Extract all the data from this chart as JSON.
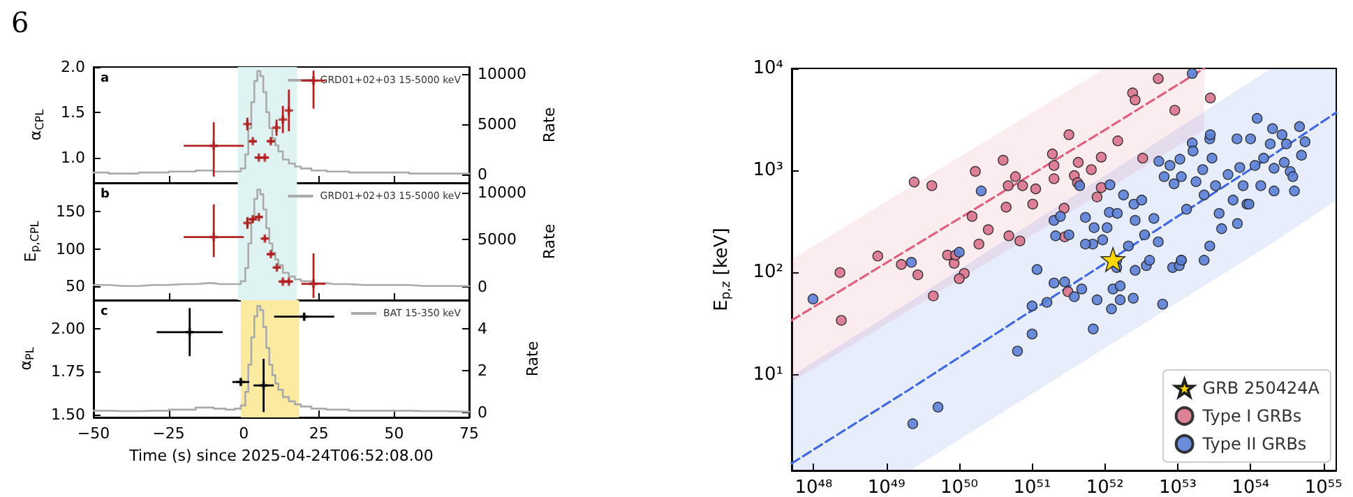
{
  "chart_data": [
    {
      "type": "other",
      "annotations": [
        "6"
      ]
    },
    {
      "type": "scatter",
      "ylabel": "α$_{CPL}$",
      "y2label": "Rate",
      "annotations": [
        "a"
      ],
      "xlim": [
        -50,
        75
      ],
      "xticks": [
        -50,
        -25,
        0,
        25,
        50,
        75
      ],
      "ylim": [
        0.72,
        2.0
      ],
      "yticks": [
        {
          "value": 1,
          "label": "1.0"
        },
        {
          "value": 1.5,
          "label": "1.5"
        },
        {
          "value": 2,
          "label": "2.0"
        }
      ],
      "y2lim": [
        -830,
        10700
      ],
      "y2ticks": [
        0,
        5000,
        10000
      ],
      "tick_labels": "y",
      "legend": "top right",
      "bands": [
        {
          "axis": "x",
          "from": -2,
          "to": 17.7,
          "color": "#dff3f3"
        }
      ],
      "series": [
        {
          "type": "step",
          "name": "GRD01+02+03 15-5000 keV",
          "color": "#aaaaaa",
          "axis": "y2",
          "x": [
            -50,
            -40,
            -30,
            -20,
            -12,
            -8,
            -4,
            -2,
            0,
            1,
            2,
            3,
            4,
            5,
            6,
            7,
            8,
            9,
            10,
            11,
            12,
            14,
            16,
            18,
            20,
            25,
            30,
            40,
            50,
            60,
            75
          ],
          "values": [
            200,
            100,
            200,
            300,
            400,
            300,
            300,
            300,
            600,
            2000,
            4600,
            7200,
            9300,
            10300,
            9800,
            8200,
            6200,
            4600,
            3600,
            2900,
            2300,
            1500,
            1100,
            800,
            600,
            400,
            300,
            200,
            200,
            100,
            100
          ]
        },
        {
          "color": "#b22222",
          "marker": "cross",
          "x": [
            -10,
            1.2,
            3,
            5,
            7,
            9,
            10.9,
            13,
            15,
            23.2
          ],
          "values": [
            1.13,
            1.37,
            1.18,
            1.0,
            1.0,
            1.18,
            1.33,
            1.42,
            1.52,
            1.85
          ],
          "errors": [
            [
              0.79,
              1.39
            ],
            0.07,
            0.02,
            0.02,
            0.02,
            0.03,
            0.09,
            0.15,
            0.23,
            [
              1.54,
              1.96
            ]
          ],
          "xerrors": [
            10,
            0.5,
            1.2,
            1.2,
            1.2,
            1.2,
            0.5,
            0.5,
            0.5,
            4
          ]
        }
      ]
    },
    {
      "type": "scatter",
      "ylabel": "E$_{p,CPL}$",
      "y2label": "Rate",
      "annotations": [
        "b"
      ],
      "xlim": [
        -50,
        75
      ],
      "xticks": [
        -50,
        -25,
        0,
        25,
        50,
        75
      ],
      "ylim": [
        31,
        189
      ],
      "yticks": [
        50,
        100,
        150
      ],
      "y2lim": [
        -1400,
        11000
      ],
      "y2ticks": [
        0,
        5000,
        10000
      ],
      "tick_labels": "y",
      "legend": "top right",
      "bands": [
        {
          "axis": "x",
          "from": -2,
          "to": 17.7,
          "color": "#dff3f3"
        }
      ],
      "series": [
        {
          "type": "step",
          "name": "GRD01+02+03 15-5000 keV",
          "color": "#aaaaaa",
          "axis": "y2",
          "x": [
            -50,
            -40,
            -30,
            -20,
            -12,
            -8,
            -4,
            -2,
            0,
            1,
            2,
            3,
            4,
            5,
            6,
            7,
            8,
            9,
            10,
            11,
            12,
            14,
            16,
            18,
            20,
            25,
            30,
            40,
            50,
            60,
            75
          ],
          "values": [
            200,
            100,
            200,
            300,
            400,
            300,
            300,
            300,
            600,
            2000,
            4600,
            7200,
            9300,
            10300,
            9800,
            8200,
            6200,
            4600,
            3600,
            2900,
            2300,
            1500,
            1100,
            800,
            600,
            400,
            300,
            200,
            200,
            100,
            100
          ]
        },
        {
          "color": "#b22222",
          "marker": "cross",
          "x": [
            -10,
            1.2,
            3,
            5,
            7,
            9,
            11,
            13,
            15,
            23.2
          ],
          "values": [
            116,
            135,
            140,
            143,
            114,
            93,
            75,
            56,
            56,
            53
          ],
          "errors": [
            [
              89,
              160
            ],
            8,
            4,
            3,
            3,
            3,
            3,
            3,
            3,
            [
              34,
              94
            ]
          ],
          "xerrors": [
            10,
            0.5,
            1.2,
            1.2,
            1.0,
            1.2,
            1.2,
            1.2,
            1.2,
            4
          ]
        }
      ]
    },
    {
      "type": "scatter",
      "ylabel": "α$_{PL}$",
      "y2label": "Rate",
      "xlabel": "Time (s) since 2025-04-24T06:52:08.00",
      "annotations": [
        "c"
      ],
      "xlim": [
        -50,
        75
      ],
      "xticks": [
        {
          "value": -50,
          "label": "−50"
        },
        {
          "value": -25,
          "label": "−25"
        },
        0,
        25,
        50,
        75
      ],
      "ylim": [
        1.484,
        2.166
      ],
      "yticks": [
        {
          "value": 1.5,
          "label": "1.50"
        },
        {
          "value": 1.75,
          "label": "1.75"
        },
        {
          "value": 2,
          "label": "2.00"
        }
      ],
      "y2lim": [
        -0.22,
        5.38
      ],
      "y2ticks": [
        0,
        2,
        4
      ],
      "legend": "top right",
      "bands": [
        {
          "axis": "x",
          "from": -1,
          "to": 18.4,
          "color": "#fbeba0"
        }
      ],
      "series": [
        {
          "type": "step",
          "name": "BAT 15-350 keV",
          "color": "#aaaaaa",
          "axis": "y2",
          "x": [
            -50,
            -40,
            -30,
            -20,
            -12,
            -8,
            -4,
            -2,
            0,
            1,
            2,
            3,
            4,
            5,
            6,
            7,
            8,
            9,
            10,
            11,
            12,
            14,
            16,
            18,
            20,
            25,
            30,
            40,
            50,
            60,
            75
          ],
          "values": [
            0.1,
            0.08,
            0.1,
            0.15,
            0.25,
            0.2,
            0.15,
            0.2,
            0.35,
            1.0,
            2.3,
            3.6,
            4.6,
            5.1,
            4.9,
            4.1,
            3.1,
            2.3,
            1.8,
            1.4,
            1.1,
            0.75,
            0.55,
            0.4,
            0.3,
            0.2,
            0.15,
            0.1,
            0.1,
            0.08,
            0.05
          ]
        },
        {
          "color": "#000000",
          "marker": "cross",
          "x": [
            -18,
            -1,
            6.6,
            20.1
          ],
          "values": [
            1.98,
            1.69,
            1.67,
            2.07
          ],
          "errors": [
            0.14,
            0.02,
            0.155,
            0.02
          ],
          "xerrors": [
            11,
            2.8,
            3.4,
            10
          ]
        }
      ]
    },
    {
      "type": "scatter",
      "ylabel": "E$_{p,z}$ [keV]",
      "log": "xy",
      "xlim": [
        5e+47,
        1.5e+55
      ],
      "xticks": [
        {
          "value": 1e+48,
          "label": "10⁴⁸"
        },
        {
          "value": 1e+49,
          "label": "10⁴⁹"
        },
        {
          "value": 1e+50,
          "label": "10⁵⁰"
        },
        {
          "value": 1e+51,
          "label": "10⁵¹"
        },
        {
          "value": 1e+52,
          "label": "10⁵²"
        },
        {
          "value": 1e+53,
          "label": "10⁵³"
        },
        {
          "value": 1e+54,
          "label": "10⁵⁴"
        },
        {
          "value": 1e+55,
          "label": "10⁵⁵"
        }
      ],
      "ylim": [
        1.15,
        10000
      ],
      "yticks": [
        {
          "value": 10,
          "label": "10¹"
        },
        {
          "value": 100,
          "label": "10²"
        },
        {
          "value": 1000,
          "label": "10³"
        },
        {
          "value": 10000,
          "label": "10⁴"
        }
      ],
      "legend": "bottom right",
      "series": [
        {
          "name": "GRB 250424A",
          "color": "#ffd700",
          "marker": "star",
          "x": [
            1.29e+52
          ],
          "values": [
            134
          ]
        },
        {
          "name": "Type I GRBs",
          "color": "#d9738c",
          "marker": "circle",
          "x": [
            2.4e+49,
            4.2e+49,
            7.6e+48,
            2.3e+48,
            1.6e+49,
            2.7e+49,
            6.9e+49,
            8.5e+49,
            8.9e+49,
            1.17e+50,
            1.66e+50,
            1.5e+50,
            1.86e+50,
            2.5e+50,
            4e+50,
            4.4e+50,
            4.7e+50,
            5.9e+50,
            4.8e+50,
            6.8e+50,
            7.4e+50,
            1.12e+51,
            1.02e+51,
            1.9e+51,
            2e+51,
            2e+51,
            2.75e+51,
            3.2e+51,
            3.8e+51,
            4.2e+51,
            4.3e+51,
            6.5e+51,
            8.9e+51,
            7.8e+51,
            8.9e+51,
            1.5e+52,
            2.4e+52,
            2.6e+52,
            5.4e+52,
            9.1e+52,
            2.8e+53,
            3.3e+52,
            2.8e+51,
            1e+50,
            4.4e+49,
            2.4e+48,
            3.1e+51
          ],
          "values": [
            770,
            710,
            145,
            100,
            120,
            95,
            148,
            123,
            148,
            98,
            980,
            355,
            190,
            263,
            1260,
            437,
            710,
            870,
            229,
            204,
            710,
            660,
            468,
            1450,
            1120,
            830,
            427,
            2240,
            890,
            760,
            1200,
            1020,
            1350,
            550,
            680,
            1950,
            5750,
            4900,
            7940,
            3890,
            5130,
            1320,
            224,
            87,
            59,
            34,
            65
          ]
        },
        {
          "name": "Type II GRBs",
          "color": "#5b7fd6",
          "marker": "circle",
          "x": [
            2e+50,
            2.2e+49,
            1e+50,
            4.5e+51,
            2e+51,
            2.1e+51,
            2.45e+51,
            3.2e+51,
            5.4e+51,
            7.1e+51,
            6.8e+51,
            5.4e+51,
            1.17e+52,
            1.15e+52,
            1.48e+52,
            1.07e+52,
            9.3e+51,
            1.8e+52,
            2.5e+52,
            2.6e+52,
            3.2e+52,
            3.5e+52,
            4.7e+52,
            5.5e+52,
            6.5e+52,
            7.8e+52,
            8.9e+52,
            1.07e+53,
            1.12e+53,
            1.32e+53,
            1.58e+53,
            1.58e+53,
            1.62e+53,
            1.78e+53,
            2.2e+53,
            2.3e+53,
            2.75e+53,
            2.8e+53,
            2.95e+53,
            3.3e+53,
            3.7e+53,
            4.9e+53,
            5.75e+53,
            6.5e+53,
            7.1e+53,
            7.9e+53,
            8.9e+53,
            1e+54,
            1.15e+54,
            1.23e+54,
            1.38e+54,
            1.51e+54,
            1.86e+54,
            2e+54,
            2.1e+54,
            2.1e+54,
            2.7e+54,
            2.9e+54,
            3.1e+54,
            3.5e+54,
            3.8e+54,
            4e+54,
            4.7e+54,
            5e+54,
            5.6e+54,
            4e+53,
            2.75e+53,
            2.3e+53,
            1.12e+53,
            8.5e+52,
            5.4e+52,
            2.1e+52,
            1.45e+52,
            6.6e+53,
            9.5e+53,
            9.8e+47,
            2.3e+49,
            5.1e+49,
            6.3e+50,
            1e+51,
            1e+51,
            1.17e+51,
            1.6e+51,
            2e+51,
            2.8e+51,
            3.8e+51,
            4.8e+51,
            6.9e+51,
            7.8e+51,
            1.23e+52,
            1.29e+52,
            1.62e+52,
            1.62e+52,
            2.45e+52,
            2.6e+52,
            3.7e+52,
            6.2e+52,
            4.1e+52,
            1.45e+52,
            1.05e+53,
            1.12e+53
          ],
          "values": [
            630,
            126,
            158,
            710,
            324,
            229,
            355,
            234,
            347,
            275,
            190,
            190,
            724,
            389,
            380,
            275,
            209,
            575,
            468,
            324,
            513,
            234,
            339,
            1230,
            870,
            1120,
            741,
            1290,
            870,
            417,
            8910,
            1860,
            1550,
            776,
            1020,
            575,
            2040,
            2240,
            1320,
            710,
            380,
            912,
            513,
            2040,
            1070,
            710,
            468,
            2040,
            1120,
            3240,
            710,
            1320,
            1820,
            2570,
            1050,
            630,
            2240,
            1200,
            1820,
            977,
            870,
            630,
            2690,
            1410,
            1910,
            269,
            182,
            132,
            132,
            112,
            200,
            182,
            132,
            302,
            468,
            55,
            3.3,
            4.8,
            17,
            25,
            47,
            107,
            51,
            79,
            81,
            58,
            69,
            28,
            54,
            44,
            69,
            54,
            74,
            56,
            105,
            117,
            49,
            132,
            112,
            117,
            132
          ]
        },
        {
          "type": "line",
          "color": "#e0607e",
          "line_style": "dashed",
          "x": [
            5e+47,
            1e+52,
            2.3e+53
          ],
          "values": [
            34,
            2500,
            10000
          ],
          "lower": [
            8.5,
            630,
            2500
          ],
          "upper": [
            135,
            10000,
            10000
          ]
        },
        {
          "type": "line",
          "color": "#4169e1",
          "line_style": "dashed",
          "x": [
            5e+47,
            2.1e+49,
            1.9e+54,
            1.5e+55
          ],
          "values": [
            1.35,
            7.2,
            1380,
            3700
          ],
          "lower": [
            1.15,
            1.15,
            190,
            510
          ],
          "upper": [
            9.8,
            52,
            10000,
            10000
          ]
        }
      ]
    }
  ]
}
